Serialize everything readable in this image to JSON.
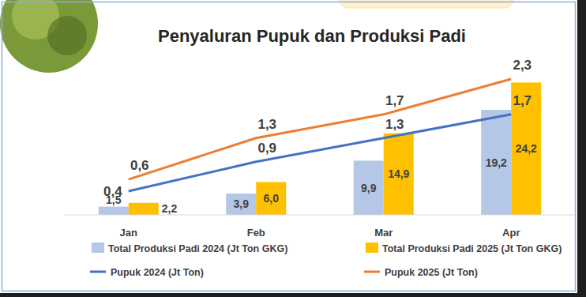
{
  "chart_data": {
    "type": "bar",
    "title": "Penyaluran Pupuk dan Produksi Padi",
    "categories": [
      "Jan",
      "Feb",
      "Mar",
      "Apr"
    ],
    "series": [
      {
        "name": "Total Produksi Padi 2024 (Jt Ton GKG)",
        "type": "bar",
        "color": "#b4c7e7",
        "values": [
          1.5,
          3.9,
          9.9,
          19.2
        ],
        "value_labels": [
          "1,5",
          "3,9",
          "9,9",
          "19,2"
        ]
      },
      {
        "name": "Total Produksi Padi 2025 (Jt Ton GKG)",
        "type": "bar",
        "color": "#ffc000",
        "values": [
          2.2,
          6.0,
          14.9,
          24.2
        ],
        "value_labels": [
          "2,2",
          "6,0",
          "14,9",
          "24,2"
        ]
      },
      {
        "name": "Pupuk 2024 (Jt Ton)",
        "type": "line",
        "axis": "y2",
        "color": "#4472c4",
        "values": [
          0.4,
          0.9,
          1.3,
          1.7
        ],
        "value_labels": [
          "0,4",
          "0,9",
          "1,3",
          "1,7"
        ]
      },
      {
        "name": "Pupuk 2025 (Jt Ton)",
        "type": "line",
        "axis": "y2",
        "color": "#ed7d31",
        "values": [
          0.6,
          1.3,
          1.7,
          2.3
        ],
        "value_labels": [
          "0,6",
          "1,3",
          "1,7",
          "2,3"
        ]
      }
    ],
    "ylim": [
      0,
      27
    ],
    "y2lim": [
      0,
      2.5
    ],
    "data_labels": true,
    "tick_labels": false,
    "grid": false,
    "legend": "bottom"
  }
}
